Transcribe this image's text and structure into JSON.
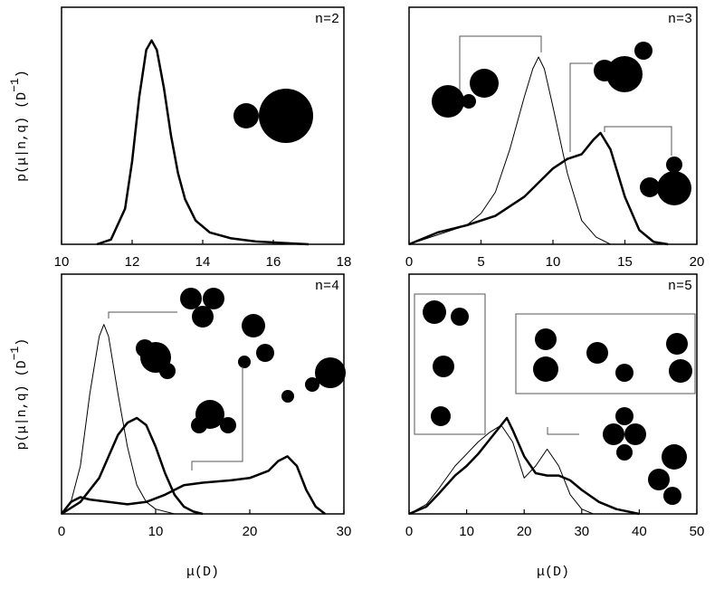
{
  "chart_data": [
    {
      "type": "line",
      "label": "n=2",
      "xlim": [
        10,
        18
      ],
      "xticks": [
        10,
        12,
        14,
        16,
        18
      ],
      "ylim": [
        0,
        1
      ],
      "ylabel": {
        "text": "p(μ|n,q) (D",
        "sup": "−1",
        "end": ")"
      },
      "series": [
        {
          "color": "#000000",
          "width": 2.5,
          "x": [
            11.0,
            11.4,
            11.8,
            12.0,
            12.2,
            12.4,
            12.55,
            12.7,
            12.9,
            13.1,
            13.3,
            13.5,
            13.8,
            14.2,
            14.8,
            15.5,
            16.5,
            17.0
          ],
          "values": [
            0,
            0.02,
            0.15,
            0.35,
            0.62,
            0.82,
            0.86,
            0.82,
            0.66,
            0.46,
            0.3,
            0.19,
            0.1,
            0.05,
            0.025,
            0.012,
            0.004,
            0
          ]
        }
      ]
    },
    {
      "type": "line",
      "label": "n=3",
      "xlim": [
        0,
        20
      ],
      "xticks": [
        0,
        5,
        10,
        15,
        20
      ],
      "ylim": [
        0,
        1
      ],
      "series": [
        {
          "color": "#000000",
          "width": 1,
          "x": [
            0,
            2,
            4,
            5,
            6,
            7,
            8,
            8.6,
            9,
            9.4,
            10,
            11,
            12,
            13,
            14
          ],
          "values": [
            0,
            0.04,
            0.08,
            0.13,
            0.22,
            0.4,
            0.62,
            0.74,
            0.79,
            0.74,
            0.58,
            0.3,
            0.1,
            0.03,
            0
          ]
        },
        {
          "color": "#000000",
          "width": 2.5,
          "x": [
            0,
            2,
            4,
            6,
            8,
            9,
            10,
            11,
            12,
            12.8,
            13.3,
            14,
            15,
            16,
            17,
            18
          ],
          "values": [
            0,
            0.05,
            0.08,
            0.12,
            0.2,
            0.26,
            0.32,
            0.36,
            0.38,
            0.44,
            0.47,
            0.4,
            0.2,
            0.06,
            0.01,
            0
          ]
        }
      ]
    },
    {
      "type": "line",
      "label": "n=4",
      "xlim": [
        0,
        30
      ],
      "xticks": [
        0,
        10,
        20,
        30
      ],
      "ylim": [
        0,
        1
      ],
      "ylabel": {
        "text": "p(μ|n,q) (D",
        "sup": "−1",
        "end": ")"
      },
      "xlabel": "μ(D)",
      "series": [
        {
          "color": "#000000",
          "width": 1,
          "x": [
            0,
            1,
            2,
            3,
            4,
            4.5,
            5,
            6,
            7,
            8,
            9,
            10,
            12
          ],
          "values": [
            0,
            0.05,
            0.2,
            0.5,
            0.74,
            0.79,
            0.74,
            0.5,
            0.28,
            0.12,
            0.05,
            0.02,
            0
          ]
        },
        {
          "color": "#000000",
          "width": 2.5,
          "x": [
            0,
            2,
            4,
            5,
            6,
            7,
            8,
            9,
            10,
            11,
            12,
            13,
            14,
            15
          ],
          "values": [
            0,
            0.05,
            0.15,
            0.24,
            0.33,
            0.38,
            0.4,
            0.37,
            0.28,
            0.17,
            0.08,
            0.03,
            0.01,
            0
          ]
        },
        {
          "color": "#000000",
          "width": 2.5,
          "x": [
            0,
            1,
            2,
            3,
            5,
            7,
            9,
            11,
            13,
            15,
            18,
            20,
            22,
            23,
            24,
            25,
            26,
            27,
            28
          ],
          "values": [
            0,
            0.05,
            0.07,
            0.06,
            0.05,
            0.04,
            0.05,
            0.08,
            0.12,
            0.13,
            0.14,
            0.15,
            0.18,
            0.22,
            0.24,
            0.2,
            0.1,
            0.03,
            0
          ]
        }
      ]
    },
    {
      "type": "line",
      "label": "n=5",
      "xlim": [
        0,
        50
      ],
      "xticks": [
        0,
        10,
        20,
        30,
        40,
        50
      ],
      "ylim": [
        0,
        1
      ],
      "xlabel": "μ(D)",
      "series": [
        {
          "color": "#000000",
          "width": 1,
          "x": [
            0,
            3,
            5,
            8,
            10,
            12,
            14,
            16,
            18,
            20,
            22,
            24,
            26,
            28,
            30,
            32
          ],
          "values": [
            0,
            0.04,
            0.1,
            0.2,
            0.25,
            0.3,
            0.34,
            0.37,
            0.3,
            0.15,
            0.2,
            0.27,
            0.2,
            0.08,
            0.02,
            0
          ]
        },
        {
          "color": "#000000",
          "width": 2.5,
          "x": [
            0,
            3,
            5,
            8,
            10,
            12,
            14,
            16,
            17,
            18,
            20,
            22,
            24,
            26,
            28,
            30,
            33,
            36,
            40
          ],
          "values": [
            0,
            0.03,
            0.08,
            0.16,
            0.2,
            0.25,
            0.31,
            0.37,
            0.4,
            0.35,
            0.24,
            0.17,
            0.16,
            0.16,
            0.14,
            0.1,
            0.05,
            0.02,
            0
          ]
        }
      ]
    }
  ]
}
